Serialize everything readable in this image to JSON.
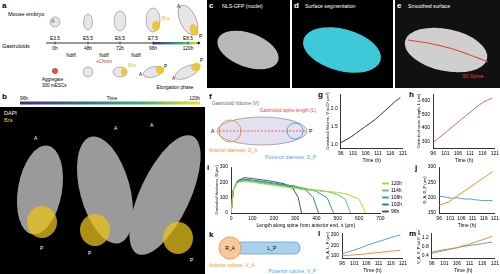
{
  "panels": {
    "a": {
      "label": "a",
      "rows": [
        "Mouse embryo",
        "Gastruloids"
      ],
      "stages": [
        "E3.5",
        "E5.5",
        "E6.5",
        "E7.5",
        "E8.5"
      ],
      "times": [
        "0h",
        "48h",
        "72h",
        "96h",
        "120h"
      ],
      "conditions": [
        "Ndiff",
        "Ndiff",
        "+Chiron",
        "Ndiff"
      ],
      "aggregate": [
        "Aggregate",
        "300 mESCs"
      ],
      "marker": "Bra",
      "anterior": "A",
      "posterior": "P",
      "phase": "Elongation phase"
    },
    "b": {
      "label": "b",
      "time_start": "96h",
      "time_axis": "Time",
      "time_end": "120h",
      "stains": [
        "DAPI",
        "Bra"
      ],
      "anterior": "A",
      "posterior": "P"
    },
    "c": {
      "label": "c",
      "title": "NLS-GFP (nuclei)"
    },
    "d": {
      "label": "d",
      "title": "Surface segmentation"
    },
    "e": {
      "label": "e",
      "title": "Smoothed surface",
      "overlay": "3D Spine"
    },
    "f": {
      "label": "f",
      "volume": "Gastruloid Volume (V)",
      "spine": "Gastruloid spine length (L)",
      "anterior_diameter": "Anterior diameter, D_A",
      "posterior_diameter": "Posterior diameter, D_P",
      "anterior": "A",
      "posterior": "P"
    },
    "k": {
      "label": "k",
      "radius": "R_A",
      "length": "L_P",
      "anterior_volume": "Anterior volume, V_A",
      "posterior_volume": "Posterior volume, V_P"
    }
  },
  "chart_data": [
    {
      "type": "line",
      "title": "g",
      "x_label": "Time (h)",
      "y_label": "Gastruloid Volume, V (x10⁷ µm³)",
      "x": [
        96,
        98,
        100,
        102,
        104,
        106,
        108,
        110,
        112,
        114,
        116,
        118,
        120
      ],
      "series": [
        {
          "color": "#333333",
          "values": [
            1.05,
            1.12,
            1.2,
            1.3,
            1.4,
            1.5,
            1.6,
            1.7,
            1.82,
            1.95,
            2.07,
            2.2,
            2.3
          ]
        }
      ],
      "xlim": [
        96,
        121
      ],
      "xticks": [
        96,
        101,
        106,
        111,
        116,
        121
      ],
      "ylim": [
        0.9,
        2.4
      ],
      "yticks": [
        {
          "value": 1.0,
          "label": "1.0"
        },
        1.5,
        {
          "value": 2.0,
          "label": "2.0"
        }
      ],
      "grid": false
    },
    {
      "type": "line",
      "title": "h",
      "x_label": "Time (h)",
      "y_label": "Gastruloid spine length, L (µm)",
      "x": [
        96,
        98,
        100,
        102,
        104,
        106,
        108,
        110,
        112,
        114,
        116,
        118,
        120
      ],
      "series": [
        {
          "color": "#e0655a",
          "values": [
            290,
            320,
            350,
            380,
            410,
            440,
            470,
            500,
            530,
            560,
            585,
            605,
            620
          ]
        }
      ],
      "xlim": [
        96,
        121
      ],
      "xticks": [
        96,
        101,
        106,
        111,
        116,
        121
      ],
      "ylim": [
        250,
        650
      ],
      "yticks": [
        300,
        400,
        500,
        600
      ],
      "grid": false
    },
    {
      "type": "line",
      "title": "i",
      "x_label": "Length along spine from anterior end, s (µm)",
      "y_label": "Gastruloid thickness, D(µm)",
      "series": [
        {
          "name": "120h",
          "color": "#b5d334",
          "x": [
            0,
            10,
            30,
            60,
            100,
            150,
            200,
            250,
            300,
            350,
            400,
            450,
            500,
            550,
            600,
            630
          ],
          "values": [
            0,
            150,
            200,
            205,
            200,
            190,
            180,
            170,
            160,
            150,
            145,
            140,
            135,
            120,
            90,
            0
          ]
        },
        {
          "name": "114h",
          "color": "#5cc86a",
          "x": [
            0,
            10,
            30,
            60,
            100,
            150,
            200,
            250,
            300,
            350,
            400,
            450,
            500,
            535,
            560
          ],
          "values": [
            0,
            150,
            200,
            210,
            205,
            195,
            185,
            175,
            165,
            155,
            150,
            140,
            120,
            90,
            0
          ]
        },
        {
          "name": "108h",
          "color": "#2aa68a",
          "x": [
            0,
            10,
            30,
            60,
            100,
            150,
            200,
            250,
            300,
            350,
            400,
            450,
            480
          ],
          "values": [
            0,
            150,
            205,
            215,
            210,
            200,
            190,
            180,
            170,
            160,
            140,
            100,
            0
          ]
        },
        {
          "name": "102h",
          "color": "#2c7ea0",
          "x": [
            0,
            10,
            30,
            60,
            100,
            150,
            200,
            250,
            300,
            350,
            385,
            410
          ],
          "values": [
            0,
            150,
            205,
            220,
            215,
            205,
            195,
            185,
            175,
            150,
            100,
            0
          ]
        },
        {
          "name": "96h",
          "color": "#3b4c9b",
          "x": [
            0,
            10,
            30,
            60,
            100,
            150,
            200,
            250,
            290,
            315,
            330
          ],
          "values": [
            0,
            150,
            210,
            230,
            225,
            215,
            205,
            190,
            160,
            100,
            0
          ]
        }
      ],
      "xlim": [
        0,
        700
      ],
      "xticks": [
        0,
        100,
        200,
        300,
        400,
        500,
        600,
        700
      ],
      "ylim": [
        0,
        300
      ],
      "yticks": [
        0,
        100,
        200,
        300
      ],
      "grid": false,
      "legend": "right"
    },
    {
      "type": "line",
      "title": "j",
      "x_label": "Time (h)",
      "y_label": "D_A, D_P (µm)",
      "x": [
        96,
        98,
        100,
        102,
        104,
        106,
        108,
        110,
        112,
        114,
        116,
        118,
        120
      ],
      "series": [
        {
          "color": "#f28e2b",
          "values": [
            175,
            180,
            185,
            195,
            205,
            215,
            225,
            235,
            245,
            255,
            265,
            275,
            285
          ]
        },
        {
          "color": "#4aa3df",
          "values": [
            205,
            203,
            200,
            198,
            200,
            197,
            195,
            196,
            193,
            192,
            190,
            191,
            190
          ]
        }
      ],
      "xlim": [
        96,
        121
      ],
      "xticks": [
        96,
        101,
        106,
        111,
        116,
        121
      ],
      "ylim": [
        150,
        300
      ],
      "yticks": [
        150,
        200,
        250,
        300
      ],
      "grid": false
    },
    {
      "type": "line",
      "title": "l",
      "x_label": "Time (h)",
      "y_label": "R_A, L_P (µm)",
      "x": [
        96,
        98,
        100,
        102,
        104,
        106,
        108,
        110,
        112,
        114,
        116,
        118,
        120
      ],
      "series": [
        {
          "color": "#f28e2b",
          "values": [
            100,
            105,
            108,
            112,
            115,
            120,
            125,
            130,
            135,
            140,
            145,
            150,
            155
          ]
        },
        {
          "color": "#4aa3df",
          "values": [
            120,
            135,
            150,
            165,
            180,
            200,
            215,
            230,
            245,
            260,
            275,
            290,
            300
          ]
        }
      ],
      "xlim": [
        96,
        121
      ],
      "xticks": [
        96,
        101,
        106,
        111,
        116,
        121
      ],
      "ylim": [
        80,
        320
      ],
      "yticks": [
        100,
        200,
        300
      ],
      "grid": false
    },
    {
      "type": "line",
      "title": "m",
      "x_label": "Time (h)",
      "y_label": "V_A, V_P (x10⁷ µm³)",
      "x": [
        96,
        98,
        100,
        102,
        104,
        106,
        108,
        110,
        112,
        114,
        116,
        118,
        120
      ],
      "series": [
        {
          "color": "#f28e2b",
          "values": [
            0.5,
            0.55,
            0.6,
            0.65,
            0.7,
            0.75,
            0.82,
            0.88,
            0.95,
            1.02,
            1.1,
            1.18,
            1.25
          ]
        },
        {
          "color": "#4aa3df",
          "values": [
            0.55,
            0.6,
            0.65,
            0.68,
            0.72,
            0.75,
            0.8,
            0.83,
            0.87,
            0.9,
            0.93,
            0.97,
            1.0
          ]
        }
      ],
      "xlim": [
        96,
        121
      ],
      "xticks": [
        96,
        101,
        106,
        111,
        116,
        121
      ],
      "ylim": [
        0.3,
        1.4
      ],
      "yticks": [
        0.4,
        0.8,
        1.2
      ],
      "grid": false
    }
  ]
}
